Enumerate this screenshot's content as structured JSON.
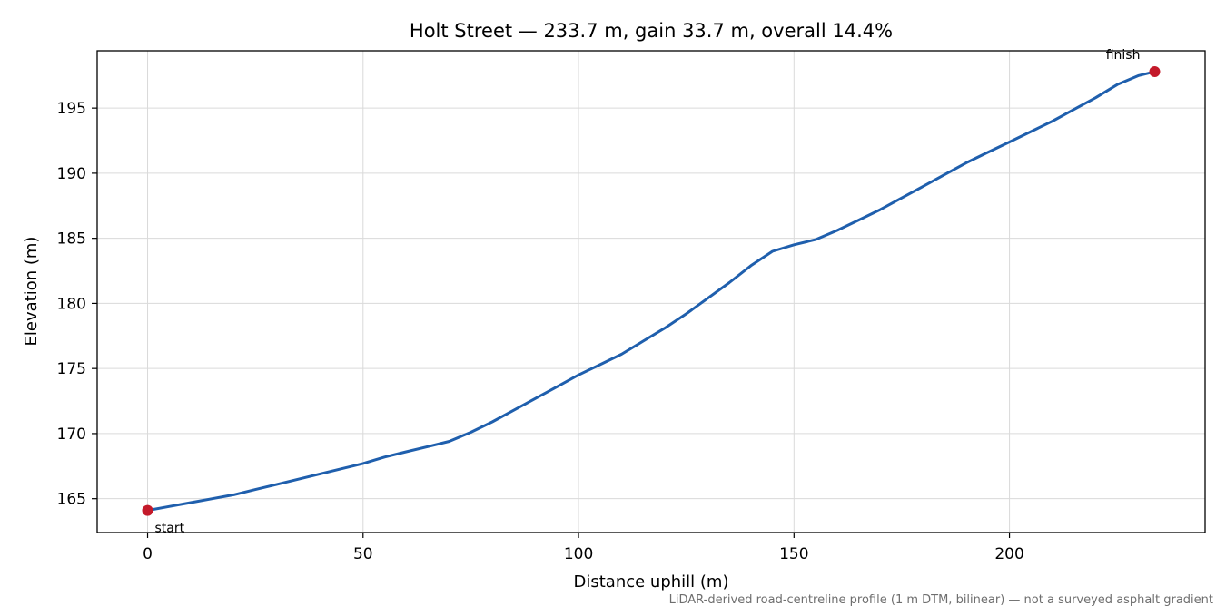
{
  "chart_data": {
    "type": "line",
    "title": "Holt Street — 233.7 m, gain 33.7 m, overall 14.4%",
    "xlabel": "Distance uphill (m)",
    "ylabel": "Elevation (m)",
    "xlim": [
      -11.7,
      245.4
    ],
    "ylim": [
      162.4,
      199.4
    ],
    "x_ticks": [
      0,
      50,
      100,
      150,
      200
    ],
    "y_ticks": [
      165,
      170,
      175,
      180,
      185,
      190,
      195
    ],
    "grid": true,
    "series": [
      {
        "color": "#1f5fad",
        "x": [
          0,
          5,
          10,
          15,
          20,
          25,
          30,
          35,
          40,
          45,
          50,
          55,
          60,
          65,
          70,
          75,
          80,
          85,
          90,
          95,
          100,
          105,
          110,
          115,
          120,
          125,
          130,
          135,
          140,
          145,
          150,
          155,
          160,
          165,
          170,
          175,
          180,
          185,
          190,
          195,
          200,
          205,
          210,
          215,
          220,
          225,
          230,
          233.7
        ],
        "y": [
          164.1,
          164.4,
          164.7,
          165.0,
          165.3,
          165.7,
          166.1,
          166.5,
          166.9,
          167.3,
          167.7,
          168.2,
          168.6,
          169.0,
          169.4,
          170.1,
          170.9,
          171.8,
          172.7,
          173.6,
          174.5,
          175.3,
          176.1,
          177.1,
          178.1,
          179.2,
          180.4,
          181.6,
          182.9,
          184.0,
          184.5,
          184.9,
          185.6,
          186.4,
          187.2,
          188.1,
          189.0,
          189.9,
          190.8,
          191.6,
          192.4,
          193.2,
          194.0,
          194.9,
          195.8,
          196.8,
          197.5,
          197.8
        ]
      }
    ],
    "markers": [
      {
        "label": "start",
        "x": 0,
        "y": 164.1,
        "color": "#c41a2a"
      },
      {
        "label": "finish",
        "x": 233.7,
        "y": 197.8,
        "color": "#c41a2a"
      }
    ],
    "footnote": "LiDAR-derived road-centreline profile (1 m DTM, bilinear) — not a surveyed asphalt gradient"
  }
}
